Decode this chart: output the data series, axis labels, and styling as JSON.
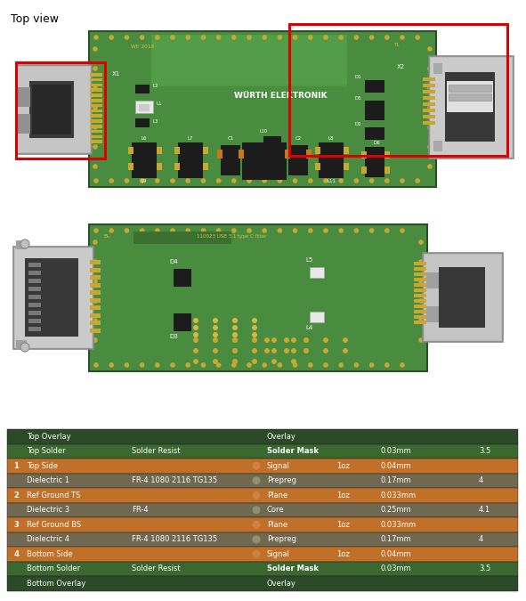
{
  "bg": "#ffffff",
  "pcb_green": "#4a8c3f",
  "pcb_green2": "#5ba050",
  "pcb_highlight": "#6ab85a",
  "gold": "#c8a830",
  "gold2": "#d4b840",
  "comp_black": "#1c1c1c",
  "comp_white": "#e8e8e8",
  "comp_gray": "#b0b0b0",
  "red_box": "#dd0000",
  "conn_gray": "#a8a8a8",
  "conn_light": "#d0d0d0",
  "conn_dark": "#606060",
  "conn_inner": "#484848",
  "text_yellow": "#d4c040",
  "text_white": "#ffffff",
  "orange_pad": "#c87818",
  "tbl_dark_green": "#2d4a28",
  "tbl_green": "#3a6830",
  "tbl_orange": "#c07028",
  "tbl_gray": "#706850",
  "top_view_label": "Top view",
  "wurth_text": "WÜRTH ELEKTRONIK",
  "we2019": "WE 2019",
  "tl_text": "TL",
  "bl_text": "BL",
  "board2_text": "110023 USB 3.1 type C filter"
}
